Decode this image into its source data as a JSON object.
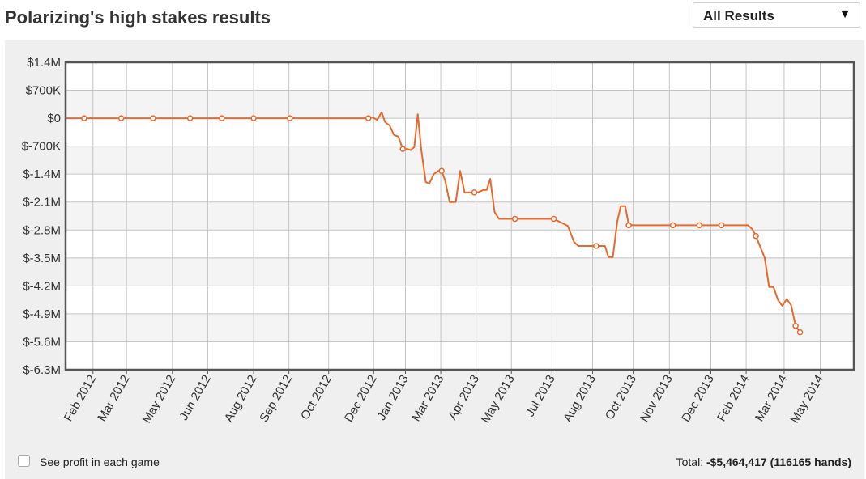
{
  "header": {
    "title": "Polarizing's high stakes results",
    "filter_selected": "All Results",
    "filter_caret": "▼"
  },
  "footer": {
    "checkbox_label": "See profit in each game",
    "total_label": "Total:",
    "total_value": "-$5,464,417",
    "hands": "(116165 hands)"
  },
  "colors": {
    "line": "#e9692c",
    "marker_fill": "#ffffff",
    "band": "#f4f4f4",
    "plot_bg": "#ffffff",
    "grid": "#c4c4c4",
    "frame": "#555555"
  },
  "chart_data": {
    "type": "line",
    "title": "Polarizing's high stakes results",
    "xlabel": "",
    "ylabel": "",
    "ylim": [
      -6300000,
      1400000
    ],
    "y_ticks": [
      {
        "value": 1400000,
        "label": "$1.4M"
      },
      {
        "value": 700000,
        "label": "$700K"
      },
      {
        "value": 0,
        "label": "$0"
      },
      {
        "value": -700000,
        "label": "$-700K"
      },
      {
        "value": -1400000,
        "label": "$-1.4M"
      },
      {
        "value": -2100000,
        "label": "$-2.1M"
      },
      {
        "value": -2800000,
        "label": "$-2.8M"
      },
      {
        "value": -3500000,
        "label": "$-3.5M"
      },
      {
        "value": -4200000,
        "label": "$-4.2M"
      },
      {
        "value": -4900000,
        "label": "$-4.9M"
      },
      {
        "value": -5600000,
        "label": "$-5.6M"
      },
      {
        "value": -6300000,
        "label": "$-6.3M"
      }
    ],
    "x_range": [
      "2012-01-01",
      "2014-06-12"
    ],
    "x_ticks": [
      {
        "date": "2012-02-01",
        "label": "Feb 2012"
      },
      {
        "date": "2012-03-10",
        "label": "Mar 2012"
      },
      {
        "date": "2012-05-01",
        "label": "May 2012"
      },
      {
        "date": "2012-06-10",
        "label": "Jun 2012"
      },
      {
        "date": "2012-08-01",
        "label": "Aug 2012"
      },
      {
        "date": "2012-09-10",
        "label": "Sep 2012"
      },
      {
        "date": "2012-10-25",
        "label": "Oct 2012"
      },
      {
        "date": "2012-12-15",
        "label": "Dec 2012"
      },
      {
        "date": "2013-01-20",
        "label": "Jan 2013"
      },
      {
        "date": "2013-03-01",
        "label": "Mar 2013"
      },
      {
        "date": "2013-04-10",
        "label": "Apr 2013"
      },
      {
        "date": "2013-05-20",
        "label": "May 2013"
      },
      {
        "date": "2013-07-05",
        "label": "Jul 2013"
      },
      {
        "date": "2013-08-20",
        "label": "Aug 2013"
      },
      {
        "date": "2013-10-05",
        "label": "Oct 2013"
      },
      {
        "date": "2013-11-15",
        "label": "Nov 2013"
      },
      {
        "date": "2014-01-01",
        "label": "Dec 2013"
      },
      {
        "date": "2014-02-10",
        "label": "Feb 2014"
      },
      {
        "date": "2014-03-25",
        "label": "Mar 2014"
      },
      {
        "date": "2014-05-05",
        "label": "May 2014"
      }
    ],
    "grid": true,
    "legend": "none",
    "series": [
      {
        "values": [
          [
            "2012-01-01",
            0
          ],
          [
            "2012-01-22",
            0
          ],
          [
            "2012-03-04",
            0
          ],
          [
            "2012-04-09",
            0
          ],
          [
            "2012-05-21",
            0
          ],
          [
            "2012-06-26",
            0
          ],
          [
            "2012-08-01",
            0
          ],
          [
            "2012-09-11",
            0
          ],
          [
            "2012-12-09",
            0
          ],
          [
            "2012-12-14",
            20000
          ],
          [
            "2012-12-19",
            -40000
          ],
          [
            "2012-12-24",
            150000
          ],
          [
            "2012-12-28",
            -100000
          ],
          [
            "2013-01-02",
            -180000
          ],
          [
            "2013-01-07",
            -420000
          ],
          [
            "2013-01-12",
            -460000
          ],
          [
            "2013-01-17",
            -770000
          ],
          [
            "2013-01-22",
            -770000
          ],
          [
            "2013-01-26",
            -800000
          ],
          [
            "2013-01-30",
            -720000
          ],
          [
            "2013-02-03",
            100000
          ],
          [
            "2013-02-07",
            -800000
          ],
          [
            "2013-02-12",
            -1600000
          ],
          [
            "2013-02-16",
            -1640000
          ],
          [
            "2013-02-21",
            -1400000
          ],
          [
            "2013-02-26",
            -1320000
          ],
          [
            "2013-03-02",
            -1320000
          ],
          [
            "2013-03-06",
            -1560000
          ],
          [
            "2013-03-11",
            -2100000
          ],
          [
            "2013-03-18",
            -2100000
          ],
          [
            "2013-03-23",
            -1320000
          ],
          [
            "2013-03-28",
            -1860000
          ],
          [
            "2013-04-02",
            -1860000
          ],
          [
            "2013-04-08",
            -1860000
          ],
          [
            "2013-04-13",
            -1850000
          ],
          [
            "2013-04-18",
            -1800000
          ],
          [
            "2013-04-22",
            -1800000
          ],
          [
            "2013-04-26",
            -1520000
          ],
          [
            "2013-05-01",
            -2350000
          ],
          [
            "2013-05-06",
            -2520000
          ],
          [
            "2013-05-13",
            -2520000
          ],
          [
            "2013-05-24",
            -2520000
          ],
          [
            "2013-06-14",
            -2520000
          ],
          [
            "2013-07-07",
            -2520000
          ],
          [
            "2013-07-16",
            -2620000
          ],
          [
            "2013-07-23",
            -2700000
          ],
          [
            "2013-07-30",
            -3100000
          ],
          [
            "2013-08-04",
            -3200000
          ],
          [
            "2013-08-14",
            -3200000
          ],
          [
            "2013-08-24",
            -3200000
          ],
          [
            "2013-09-03",
            -3200000
          ],
          [
            "2013-09-07",
            -3480000
          ],
          [
            "2013-09-12",
            -3480000
          ],
          [
            "2013-09-17",
            -2580000
          ],
          [
            "2013-09-21",
            -2200000
          ],
          [
            "2013-09-26",
            -2200000
          ],
          [
            "2013-09-30",
            -2680000
          ],
          [
            "2013-10-25",
            -2680000
          ],
          [
            "2013-11-19",
            -2680000
          ],
          [
            "2013-12-19",
            -2680000
          ],
          [
            "2014-01-13",
            -2680000
          ],
          [
            "2014-02-02",
            -2680000
          ],
          [
            "2014-02-12",
            -2680000
          ],
          [
            "2014-02-17",
            -2780000
          ],
          [
            "2014-02-21",
            -2950000
          ],
          [
            "2014-03-03",
            -3500000
          ],
          [
            "2014-03-08",
            -4230000
          ],
          [
            "2014-03-13",
            -4230000
          ],
          [
            "2014-03-18",
            -4550000
          ],
          [
            "2014-03-23",
            -4700000
          ],
          [
            "2014-03-28",
            -4530000
          ],
          [
            "2014-04-02",
            -4680000
          ],
          [
            "2014-04-07",
            -5200000
          ],
          [
            "2014-04-12",
            -5360000
          ]
        ],
        "markers": [
          "2012-01-22",
          "2012-03-04",
          "2012-04-09",
          "2012-05-21",
          "2012-06-26",
          "2012-08-01",
          "2012-09-11",
          "2012-12-09",
          "2013-01-17",
          "2013-03-02",
          "2013-04-08",
          "2013-05-24",
          "2013-07-07",
          "2013-08-24",
          "2013-09-30",
          "2013-11-19",
          "2013-12-19",
          "2014-01-13",
          "2014-02-21",
          "2014-04-07",
          "2014-04-12"
        ]
      }
    ]
  }
}
